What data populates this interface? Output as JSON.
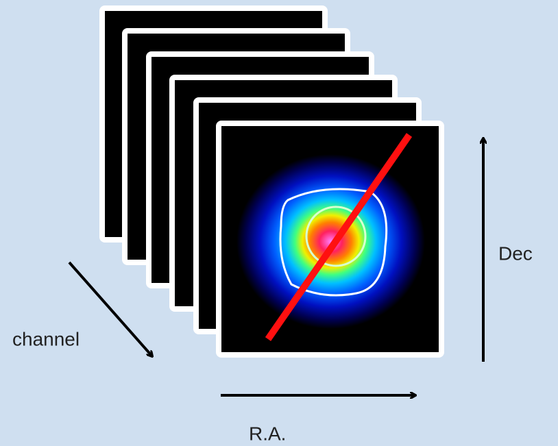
{
  "labels": {
    "channel": "channel",
    "dec": "Dec",
    "ra": "R.A."
  }
}
